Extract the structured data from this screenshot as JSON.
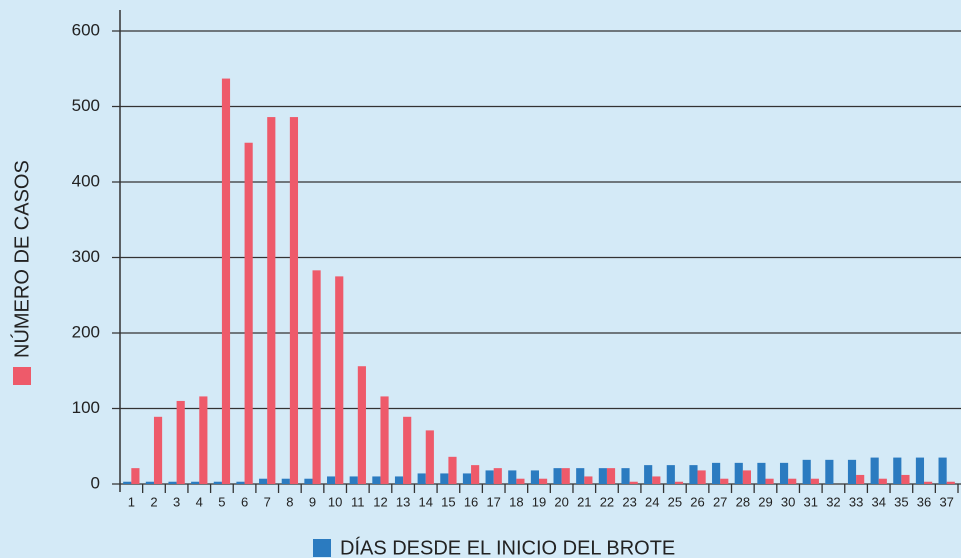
{
  "chart_data": {
    "type": "bar",
    "x_label": "DÍAS DESDE EL INICIO DEL BROTE",
    "y_label": "NÚMERO DE CASOS",
    "categories": [
      1,
      2,
      3,
      4,
      5,
      6,
      7,
      8,
      9,
      10,
      11,
      12,
      13,
      14,
      15,
      16,
      17,
      18,
      19,
      20,
      21,
      22,
      23,
      24,
      25,
      26,
      27,
      28,
      29,
      30,
      31,
      32,
      33,
      34,
      35,
      36,
      37
    ],
    "series": [
      {
        "color": "#2b7bc0",
        "values": [
          3,
          3,
          3,
          3,
          3,
          3,
          7,
          7,
          7,
          10,
          10,
          10,
          10,
          14,
          14,
          14,
          18,
          18,
          18,
          21,
          21,
          21,
          21,
          25,
          25,
          25,
          28,
          28,
          28,
          28,
          32,
          32,
          32,
          35,
          35,
          35,
          35
        ]
      },
      {
        "color": "#ee5a6a",
        "values": [
          21,
          89,
          110,
          116,
          537,
          452,
          486,
          486,
          283,
          275,
          156,
          116,
          89,
          71,
          36,
          25,
          21,
          7,
          7,
          21,
          10,
          21,
          3,
          10,
          3,
          18,
          7,
          18,
          7,
          7,
          7,
          0,
          12,
          7,
          12,
          3,
          3
        ]
      }
    ],
    "ylim": [
      0,
      600
    ],
    "yticks": [
      0,
      100,
      200,
      300,
      400,
      500,
      600
    ],
    "grid": true
  }
}
